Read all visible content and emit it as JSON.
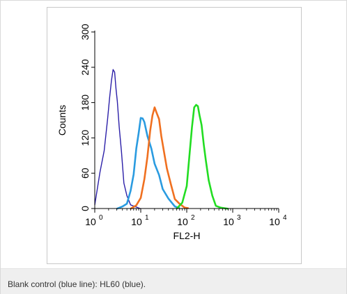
{
  "caption": "Blank control (blue line): HL60 (blue).",
  "chart_data": {
    "type": "line",
    "xlabel": "FL2-H",
    "ylabel": "Counts",
    "x_scale": "log",
    "xlim": [
      1,
      10000
    ],
    "ylim": [
      0,
      300
    ],
    "x_ticks": [
      {
        "value": 1,
        "base": "10",
        "exp": "0"
      },
      {
        "value": 10,
        "base": "10",
        "exp": "1"
      },
      {
        "value": 100,
        "base": "10",
        "exp": "2"
      },
      {
        "value": 1000,
        "base": "10",
        "exp": "3"
      },
      {
        "value": 10000,
        "base": "10",
        "exp": "4"
      }
    ],
    "y_ticks": [
      "0",
      "60",
      "120",
      "180",
      "240",
      "300"
    ],
    "grid": false,
    "series": [
      {
        "color": "#2b1fa8",
        "x": [
          1,
          1.3,
          1.6,
          1.9,
          2.1,
          2.3,
          2.5,
          2.7,
          2.9,
          3.1,
          3.4,
          3.8,
          4.3,
          5,
          6,
          8,
          10
        ],
        "values": [
          8,
          60,
          100,
          150,
          190,
          215,
          238,
          230,
          205,
          180,
          140,
          95,
          45,
          20,
          8,
          2,
          0
        ]
      },
      {
        "color": "#2a9be0",
        "x": [
          3,
          4,
          5,
          6,
          7,
          8,
          9,
          10,
          11,
          12,
          14,
          17,
          20,
          25,
          30,
          40,
          55,
          70
        ],
        "values": [
          0,
          3,
          10,
          28,
          60,
          100,
          130,
          152,
          155,
          145,
          125,
          100,
          78,
          55,
          35,
          15,
          4,
          0
        ]
      },
      {
        "color": "#f07020",
        "x": [
          6,
          8,
          10,
          12,
          14,
          16,
          18,
          20,
          22,
          25,
          28,
          32,
          37,
          45,
          55,
          70,
          90,
          110
        ],
        "values": [
          0,
          5,
          20,
          48,
          90,
          130,
          160,
          170,
          165,
          150,
          125,
          95,
          70,
          40,
          18,
          6,
          2,
          0
        ]
      },
      {
        "color": "#22dd22",
        "x": [
          60,
          80,
          100,
          115,
          130,
          145,
          160,
          175,
          190,
          210,
          235,
          260,
          300,
          360,
          430,
          550,
          800
        ],
        "values": [
          0,
          8,
          40,
          90,
          140,
          170,
          178,
          172,
          160,
          140,
          110,
          80,
          50,
          20,
          5,
          1,
          0
        ]
      }
    ]
  }
}
